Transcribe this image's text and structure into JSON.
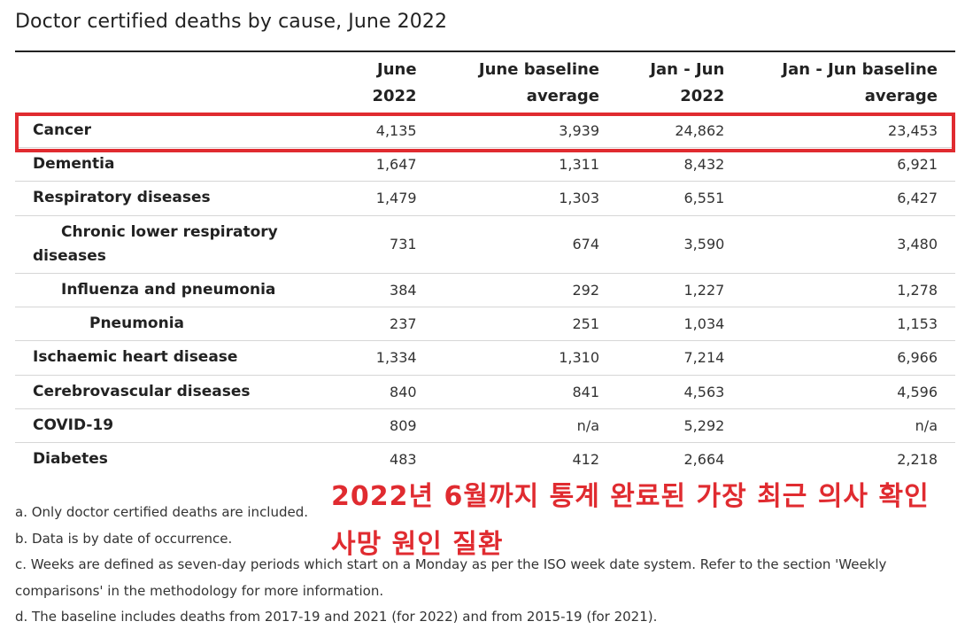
{
  "title": "Doctor certified deaths by cause, June 2022",
  "table": {
    "headers": {
      "june_2022": [
        "June",
        "2022"
      ],
      "june_baseline": [
        "June baseline",
        "average"
      ],
      "jan_jun_2022": [
        "Jan - Jun",
        "2022"
      ],
      "jan_jun_baseline": [
        "Jan - Jun baseline",
        "average"
      ]
    },
    "rows": [
      {
        "cause": "Cancer",
        "june_2022": "4,135",
        "june_baseline": "3,939",
        "jan_jun_2022": "24,862",
        "jan_jun_baseline": "23,453",
        "highlighted": true
      },
      {
        "cause": "Dementia",
        "june_2022": "1,647",
        "june_baseline": "1,311",
        "jan_jun_2022": "8,432",
        "jan_jun_baseline": "6,921"
      },
      {
        "cause": "Respiratory diseases",
        "june_2022": "1,479",
        "june_baseline": "1,303",
        "jan_jun_2022": "6,551",
        "jan_jun_baseline": "6,427"
      },
      {
        "cause": "Chronic lower respiratory diseases",
        "june_2022": "731",
        "june_baseline": "674",
        "jan_jun_2022": "3,590",
        "jan_jun_baseline": "3,480"
      },
      {
        "cause": "Influenza and pneumonia",
        "june_2022": "384",
        "june_baseline": "292",
        "jan_jun_2022": "1,227",
        "jan_jun_baseline": "1,278"
      },
      {
        "cause": "Pneumonia",
        "june_2022": "237",
        "june_baseline": "251",
        "jan_jun_2022": "1,034",
        "jan_jun_baseline": "1,153"
      },
      {
        "cause": "Ischaemic heart disease",
        "june_2022": "1,334",
        "june_baseline": "1,310",
        "jan_jun_2022": "7,214",
        "jan_jun_baseline": "6,966"
      },
      {
        "cause": "Cerebrovascular diseases",
        "june_2022": "840",
        "june_baseline": "841",
        "jan_jun_2022": "4,563",
        "jan_jun_baseline": "4,596"
      },
      {
        "cause": "COVID-19",
        "june_2022": "809",
        "june_baseline": "n/a",
        "jan_jun_2022": "5,292",
        "jan_jun_baseline": "n/a"
      },
      {
        "cause": "Diabetes",
        "june_2022": "483",
        "june_baseline": "412",
        "jan_jun_2022": "2,664",
        "jan_jun_baseline": "2,218"
      }
    ]
  },
  "footnotes": [
    "a. Only doctor certified deaths are included.",
    "b. Data is by date of occurrence.",
    "c. Weeks are defined as seven-day periods which start on a Monday as per the ISO week date system. Refer to the section 'Weekly comparisons' in the methodology for more information.",
    "d. The baseline includes deaths from 2017-19 and 2021 (for 2022) and from 2015-19 (for 2021)."
  ],
  "annotation": {
    "text": "2022년 6월까지 통계 완료된 가장 최근 의사 확인 사망 원인 질환",
    "color": "#e02b30"
  }
}
